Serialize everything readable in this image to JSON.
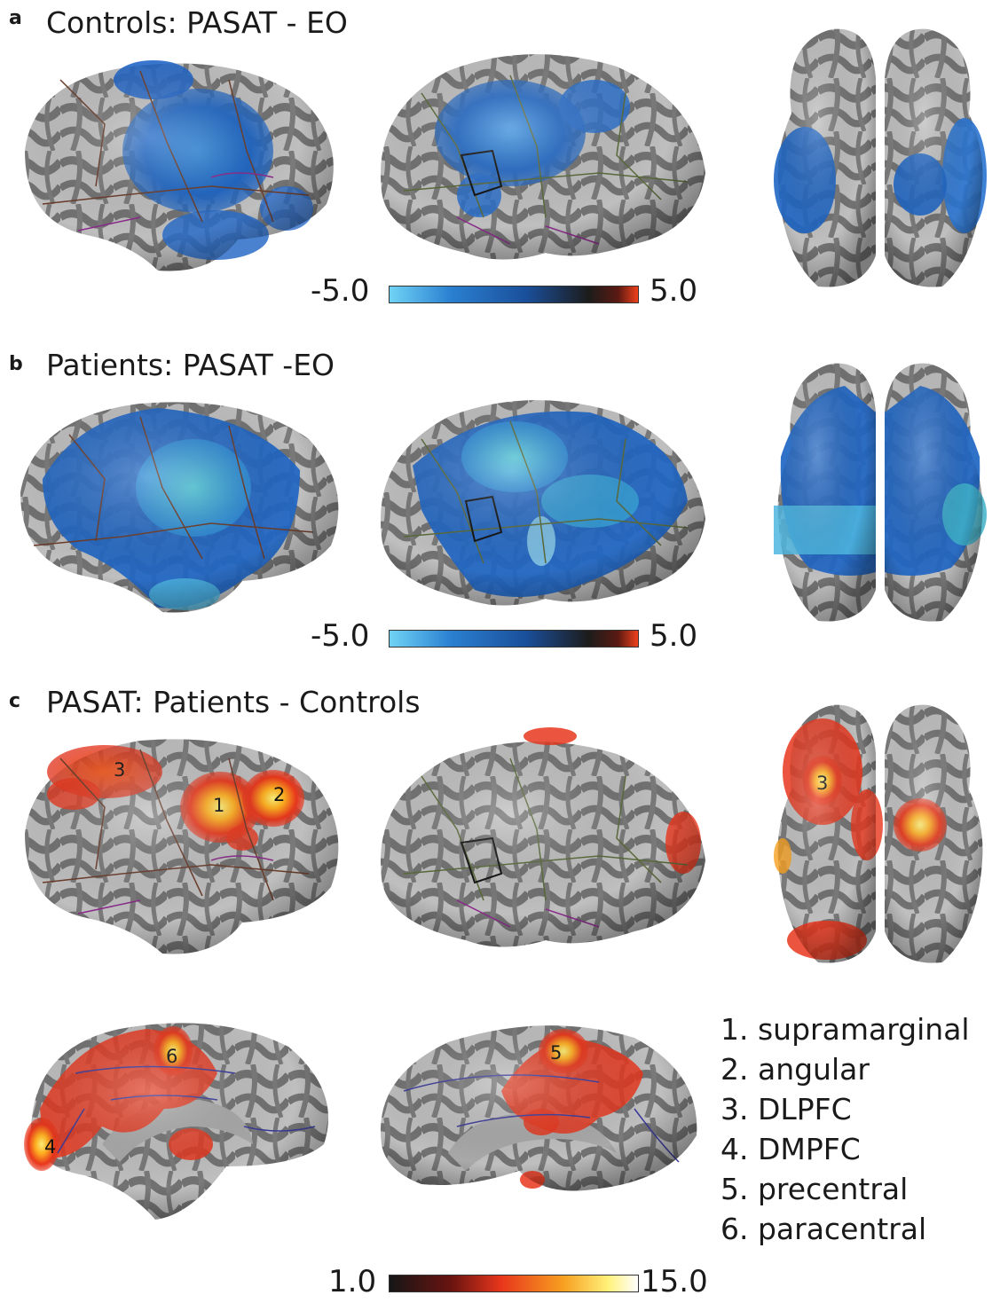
{
  "panels": {
    "a": {
      "letter": "a",
      "title": "Controls: PASAT - EO",
      "colorbar": {
        "min": "-5.0",
        "max": "5.0"
      }
    },
    "b": {
      "letter": "b",
      "title": "Patients: PASAT -EO",
      "colorbar": {
        "min": "-5.0",
        "max": "5.0"
      }
    },
    "c": {
      "letter": "c",
      "title": "PASAT: Patients - Controls",
      "colorbar": {
        "min": "1.0",
        "max": "15.0"
      }
    }
  },
  "roi_markers": [
    "1",
    "2",
    "3",
    "3",
    "4",
    "5",
    "6"
  ],
  "legend": [
    "1. supramarginal",
    "2. angular",
    "3. DLPFC",
    "4. DMPFC",
    "5. precentral",
    "6. paracentral"
  ],
  "colors": {
    "cortex_light": "#bdbdbd",
    "cortex_dark": "#6f6f6f",
    "activation_negative": "#1f66c4",
    "activation_negative_light": "#4fb7e0",
    "activation_positive": "#e8361c",
    "activation_positive_peak": "#ffe040",
    "colorbar_diverging": [
      "#5cc8f0",
      "#1d5fb5",
      "#141414",
      "#e8361c"
    ],
    "colorbar_sequential": [
      "#141414",
      "#8a1a10",
      "#e8361c",
      "#f5a020",
      "#fff27a",
      "#ffffff"
    ]
  },
  "icons": [
    "brain-surface-lateral",
    "brain-surface-dorsal",
    "brain-surface-medial"
  ]
}
